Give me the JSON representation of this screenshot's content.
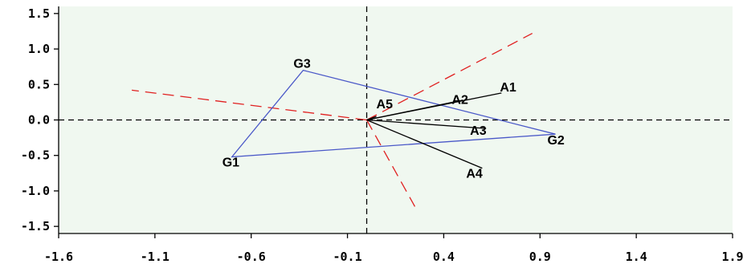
{
  "chart_data": {
    "type": "scatter",
    "background": "#f0f8f0",
    "xlim": [
      -1.6,
      1.9
    ],
    "ylim": [
      -1.6,
      1.6
    ],
    "x_ticks": [
      -1.6,
      -1.1,
      -0.6,
      -0.1,
      0.4,
      0.9,
      1.4,
      1.9
    ],
    "x_tick_labels": [
      "-1.6",
      "-1.1",
      "-0.6",
      "-0.1",
      "0.4",
      "0.9",
      "1.4",
      "1.9"
    ],
    "y_ticks": [
      1.5,
      1.0,
      0.5,
      0.0,
      -0.5,
      -1.0,
      -1.5
    ],
    "y_tick_labels": [
      "1.5",
      "1.0",
      "0.5",
      "0.0",
      "-0.5",
      "-1.0",
      "-1.5"
    ],
    "reference_lines": {
      "x": 0,
      "y": 0,
      "style": "dashed",
      "color": "#000000"
    },
    "origin": [
      0,
      0
    ],
    "genotypes": {
      "color": "#4a58c8",
      "points": [
        {
          "label": "G1",
          "x": -0.7,
          "y": -0.52
        },
        {
          "label": "G2",
          "x": 0.98,
          "y": -0.2
        },
        {
          "label": "G3",
          "x": -0.33,
          "y": 0.7
        }
      ],
      "polygon_order": [
        "G1",
        "G3",
        "G2"
      ]
    },
    "environments": {
      "color": "#000000",
      "vectors": [
        {
          "label": "A1",
          "x": 0.7,
          "y": 0.38
        },
        {
          "label": "A2",
          "x": 0.5,
          "y": 0.28
        },
        {
          "label": "A3",
          "x": 0.62,
          "y": -0.12
        },
        {
          "label": "A4",
          "x": 0.6,
          "y": -0.68
        },
        {
          "label": "A5",
          "x": 0.05,
          "y": 0.05
        }
      ]
    },
    "sector_lines": {
      "color": "#e02020",
      "style": "dashed",
      "lines": [
        {
          "x": 0.86,
          "y": 1.22
        },
        {
          "x": -1.22,
          "y": 0.42
        },
        {
          "x": 0.25,
          "y": -1.22
        }
      ]
    }
  }
}
